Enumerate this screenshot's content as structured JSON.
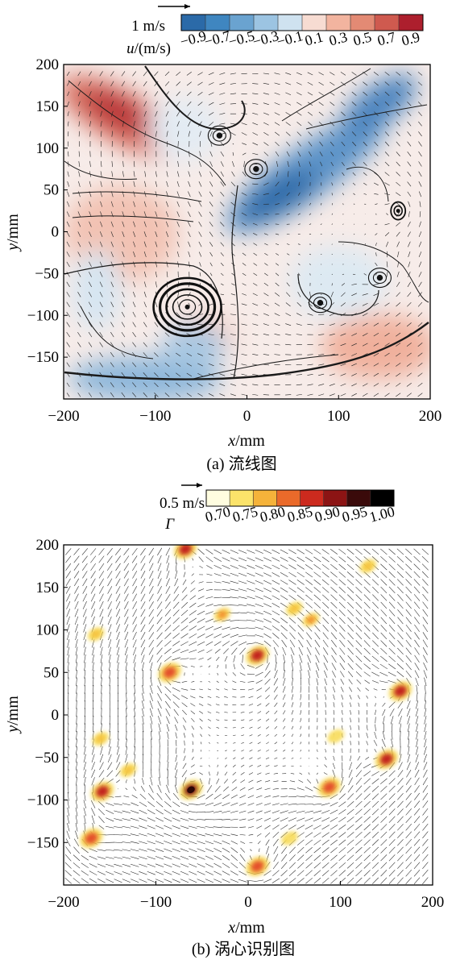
{
  "figure": {
    "panels": [
      {
        "caption": "(a) 流线图",
        "ref_vector_label": "1 m/s",
        "colorbar_label_var": "u",
        "colorbar_label_unit": "/(m/s)",
        "colorbar_ticks": [
          "-0.9",
          "-0.7",
          "-0.5",
          "-0.3",
          "-0.1",
          "0.1",
          "0.3",
          "0.5",
          "0.7",
          "0.9"
        ],
        "colorbar_colors": [
          "#2b6aa8",
          "#3f86c0",
          "#6aa3d0",
          "#9cc4e2",
          "#cfe2f0",
          "#f7dcd2",
          "#f2b49f",
          "#e38a74",
          "#cf5a4f",
          "#ad1f2d"
        ],
        "xlabel_var": "x",
        "xlabel_unit": "/mm",
        "ylabel_var": "y",
        "ylabel_unit": "/mm",
        "xticks": [
          "-200",
          "-100",
          "0",
          "100",
          "200"
        ],
        "yticks": [
          "200",
          "150",
          "100",
          "50",
          "0",
          "-50",
          "-100",
          "-150"
        ]
      },
      {
        "caption": "(b) 涡心识别图",
        "ref_vector_label": "0.5 m/s",
        "colorbar_label_var": "Γ",
        "colorbar_ticks": [
          "0.70",
          "0.75",
          "0.80",
          "0.85",
          "0.90",
          "0.95",
          "1.00"
        ],
        "colorbar_colors": [
          "#fffde0",
          "#fbe36a",
          "#f5b33a",
          "#ea6a2a",
          "#cc2a1e",
          "#8c1414",
          "#3a0a0a",
          "#000000"
        ],
        "xlabel_var": "x",
        "xlabel_unit": "/mm",
        "ylabel_var": "y",
        "ylabel_unit": "/mm",
        "xticks": [
          "-200",
          "-100",
          "0",
          "100",
          "200"
        ],
        "yticks": [
          "200",
          "150",
          "100",
          "50",
          "0",
          "-50",
          "-100",
          "-150"
        ]
      }
    ]
  },
  "chart_data": [
    {
      "type": "heatmap",
      "title": "(a) 流线图",
      "field": "u (m/s)",
      "colorbar": {
        "min": -0.9,
        "max": 0.9,
        "ticks": [
          -0.9,
          -0.7,
          -0.5,
          -0.3,
          -0.1,
          0.1,
          0.3,
          0.5,
          0.7,
          0.9
        ]
      },
      "xlabel": "x/mm",
      "ylabel": "y/mm",
      "xlim": [
        -200,
        200
      ],
      "ylim": [
        -200,
        200
      ],
      "reference_vector": "1 m/s",
      "features": {
        "positive_u_regions": [
          {
            "x": -120,
            "y": 130,
            "u": 0.9
          },
          {
            "x": -100,
            "y": 50,
            "u": 0.3
          },
          {
            "x": 100,
            "y": -150,
            "u": 0.3
          }
        ],
        "negative_u_regions": [
          {
            "x": 40,
            "y": 50,
            "u": -0.7
          },
          {
            "x": 140,
            "y": 140,
            "u": -0.6
          },
          {
            "x": -120,
            "y": -150,
            "u": -0.4
          }
        ],
        "vortex_centers": [
          {
            "x": -65,
            "y": -90
          },
          {
            "x": 80,
            "y": -85
          },
          {
            "x": 165,
            "y": 25
          },
          {
            "x": 145,
            "y": -55
          },
          {
            "x": -30,
            "y": 115
          },
          {
            "x": 10,
            "y": 75
          }
        ]
      }
    },
    {
      "type": "heatmap",
      "title": "(b) 涡心识别图",
      "field": "Γ",
      "colorbar": {
        "min": 0.7,
        "max": 1.0,
        "ticks": [
          0.7,
          0.75,
          0.8,
          0.85,
          0.9,
          0.95,
          1.0
        ]
      },
      "xlabel": "x/mm",
      "ylabel": "y/mm",
      "xlim": [
        -200,
        200
      ],
      "ylim": [
        -200,
        200
      ],
      "reference_vector": "0.5 m/s",
      "vortex_cores": [
        {
          "x": -62,
          "y": -88,
          "gamma": 1.0
        },
        {
          "x": 10,
          "y": 70,
          "gamma": 0.9
        },
        {
          "x": 165,
          "y": 28,
          "gamma": 0.9
        },
        {
          "x": 150,
          "y": -52,
          "gamma": 0.9
        },
        {
          "x": 88,
          "y": -85,
          "gamma": 0.88
        },
        {
          "x": -158,
          "y": -90,
          "gamma": 0.9
        },
        {
          "x": -170,
          "y": -145,
          "gamma": 0.85
        },
        {
          "x": -68,
          "y": 195,
          "gamma": 0.9
        },
        {
          "x": -85,
          "y": 50,
          "gamma": 0.85
        },
        {
          "x": -28,
          "y": 118,
          "gamma": 0.8
        },
        {
          "x": 68,
          "y": 112,
          "gamma": 0.82
        },
        {
          "x": 10,
          "y": -178,
          "gamma": 0.85
        },
        {
          "x": 130,
          "y": 175,
          "gamma": 0.75
        },
        {
          "x": 50,
          "y": 125,
          "gamma": 0.78
        },
        {
          "x": -165,
          "y": 95,
          "gamma": 0.76
        },
        {
          "x": -130,
          "y": -65,
          "gamma": 0.78
        },
        {
          "x": -160,
          "y": -28,
          "gamma": 0.75
        },
        {
          "x": 95,
          "y": -25,
          "gamma": 0.74
        },
        {
          "x": 45,
          "y": -145,
          "gamma": 0.74
        }
      ]
    }
  ]
}
